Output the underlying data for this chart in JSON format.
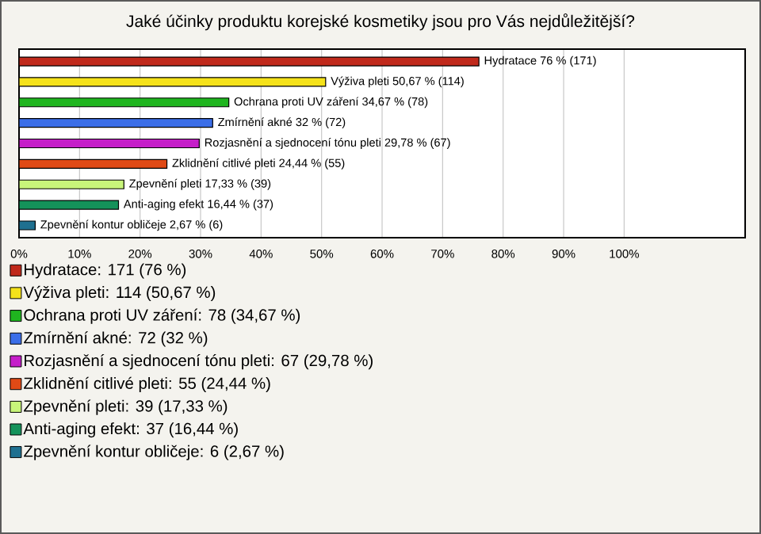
{
  "chart_data": {
    "type": "bar",
    "orientation": "horizontal",
    "title": "Jaké účinky produktu korejské kosmetiky jsou pro Vás nejdůležitější?",
    "categories": [
      null,
      null,
      null,
      null,
      null,
      null,
      null,
      null,
      null
    ],
    "series": [
      {
        "name": "Hydratace: 171 (76 %)",
        "color": "#c0291b",
        "values": [
          76,
          null,
          null,
          null,
          null,
          null,
          null,
          null,
          null
        ],
        "value_labels": [
          "Hydratace 76 % (171)",
          null,
          null,
          null,
          null,
          null,
          null,
          null,
          null
        ]
      },
      {
        "name": "Výživa pleti: 114 (50,67 %)",
        "color": "#f5e21a",
        "values": [
          null,
          50.67,
          null,
          null,
          null,
          null,
          null,
          null,
          null
        ],
        "value_labels": [
          null,
          "Výživa pleti 50,67 % (114)",
          null,
          null,
          null,
          null,
          null,
          null,
          null
        ]
      },
      {
        "name": "Ochrana proti UV záření: 78 (34,67 %)",
        "color": "#1fb51f",
        "values": [
          null,
          null,
          34.67,
          null,
          null,
          null,
          null,
          null,
          null
        ],
        "value_labels": [
          null,
          null,
          "Ochrana proti UV záření 34,67 % (78)",
          null,
          null,
          null,
          null,
          null,
          null
        ]
      },
      {
        "name": "Zmírnění akné: 72 (32 %)",
        "color": "#3b6ee8",
        "values": [
          null,
          null,
          null,
          32,
          null,
          null,
          null,
          null,
          null
        ],
        "value_labels": [
          null,
          null,
          null,
          "Zmírnění akné 32 % (72)",
          null,
          null,
          null,
          null,
          null
        ]
      },
      {
        "name": "Rozjasnění a sjednocení tónu pleti: 67 (29,78 %)",
        "color": "#c51ec9",
        "values": [
          null,
          null,
          null,
          null,
          29.78,
          null,
          null,
          null,
          null
        ],
        "value_labels": [
          null,
          null,
          null,
          null,
          "Rozjasnění a sjednocení tónu pleti 29,78 % (67)",
          null,
          null,
          null,
          null
        ]
      },
      {
        "name": "Zklidnění citlivé pleti: 55 (24,44 %)",
        "color": "#e04a16",
        "values": [
          null,
          null,
          null,
          null,
          null,
          24.44,
          null,
          null,
          null
        ],
        "value_labels": [
          null,
          null,
          null,
          null,
          null,
          "Zklidnění citlivé pleti 24,44 % (55)",
          null,
          null,
          null
        ]
      },
      {
        "name": "Zpevnění pleti: 39 (17,33 %)",
        "color": "#c8f57a",
        "values": [
          null,
          null,
          null,
          null,
          null,
          null,
          17.33,
          null,
          null
        ],
        "value_labels": [
          null,
          null,
          null,
          null,
          null,
          null,
          "Zpevnění pleti 17,33 % (39)",
          null,
          null
        ]
      },
      {
        "name": "Anti-aging efekt: 37 (16,44 %)",
        "color": "#14925a",
        "values": [
          null,
          null,
          null,
          null,
          null,
          null,
          null,
          16.44,
          null
        ],
        "value_labels": [
          null,
          null,
          null,
          null,
          null,
          null,
          null,
          "Anti-aging efekt 16,44 % (37)",
          null
        ]
      },
      {
        "name": "Zpevnění kontur obličeje: 6 (2,67 %)",
        "color": "#1f7090",
        "values": [
          null,
          null,
          null,
          null,
          null,
          null,
          null,
          null,
          2.67
        ],
        "value_labels": [
          null,
          null,
          null,
          null,
          null,
          null,
          null,
          null,
          "Zpevnění kontur obličeje 2,67 % (6)"
        ]
      }
    ],
    "xlim": [
      0,
      120
    ],
    "xticks": [
      {
        "value": 0,
        "label": "0%"
      },
      {
        "value": 10,
        "label": "10%"
      },
      {
        "value": 20,
        "label": "20%"
      },
      {
        "value": 30,
        "label": "30%"
      },
      {
        "value": 40,
        "label": "40%"
      },
      {
        "value": 50,
        "label": "50%"
      },
      {
        "value": 60,
        "label": "60%"
      },
      {
        "value": 70,
        "label": "70%"
      },
      {
        "value": 80,
        "label": "80%"
      },
      {
        "value": 90,
        "label": "90%"
      },
      {
        "value": 100,
        "label": "100%"
      }
    ],
    "grid": "x",
    "legend": "bottom",
    "tick_labels": "x"
  }
}
